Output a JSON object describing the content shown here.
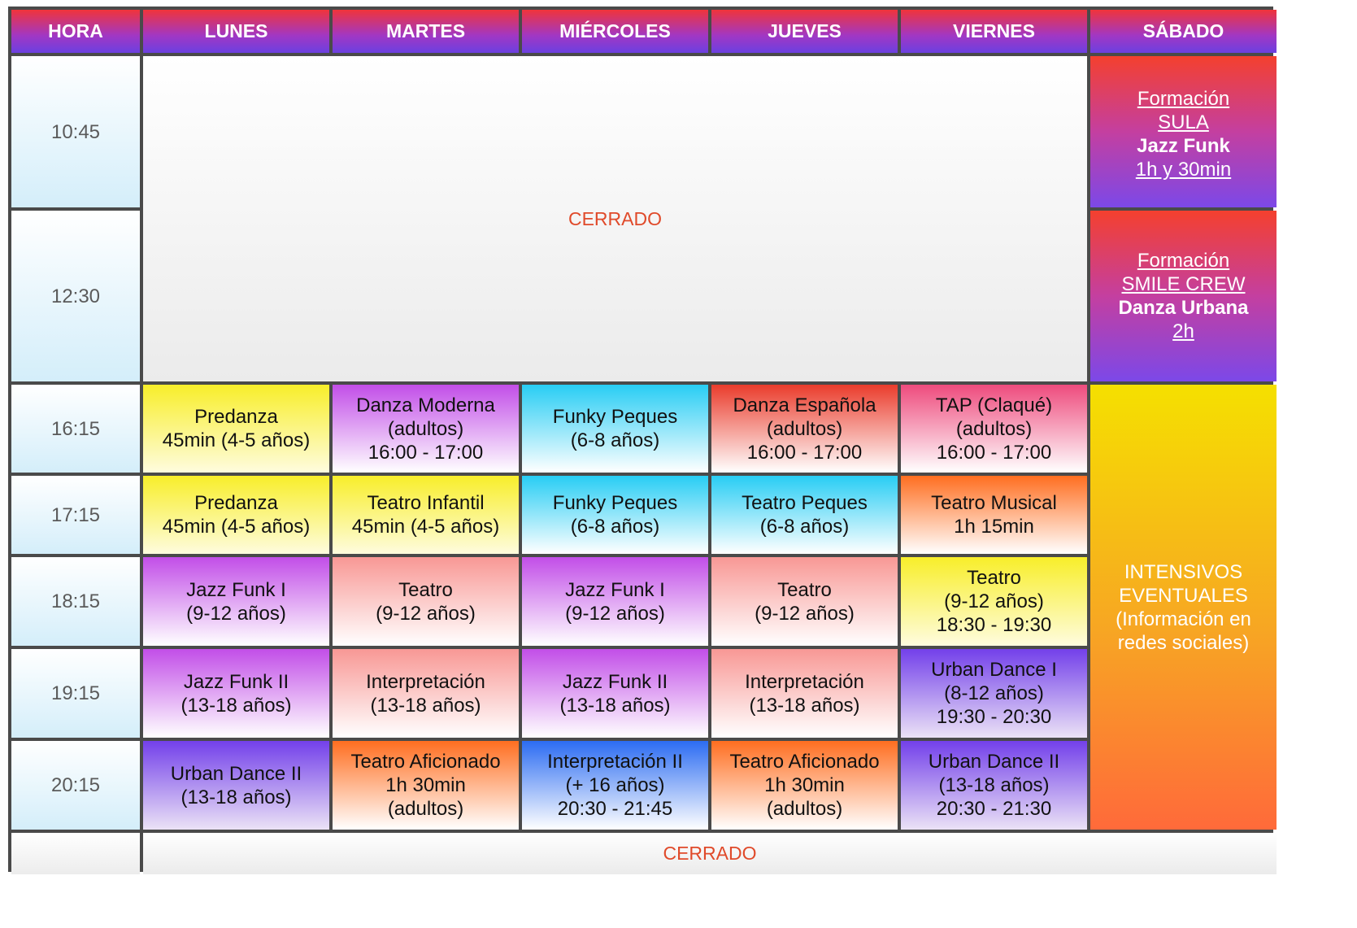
{
  "headers": [
    "HORA",
    "LUNES",
    "MARTES",
    "MIÉRCOLES",
    "JUEVES",
    "VIERNES",
    "SÁBADO"
  ],
  "times": [
    "10:45",
    "12:30",
    "16:15",
    "17:15",
    "18:15",
    "19:15",
    "20:15"
  ],
  "closed_label": "CERRADO",
  "saturday": {
    "morning1": {
      "line1": "Formación",
      "line2": "SULA",
      "line3": "Jazz Funk",
      "line4": "1h y 30min"
    },
    "morning2": {
      "line1": "Formación",
      "line2": "SMILE CREW",
      "line3": "Danza Urbana",
      "line4": "2h"
    },
    "afternoon": {
      "line1": "INTENSIVOS",
      "line2": "EVENTUALES",
      "line3": "(Información en",
      "line4": "redes sociales)"
    }
  },
  "classes": {
    "r1615": {
      "lunes": [
        "Predanza",
        "45min (4-5 años)"
      ],
      "martes": [
        "Danza Moderna",
        "(adultos)",
        "16:00 - 17:00"
      ],
      "miercoles": [
        "Funky Peques",
        "(6-8 años)"
      ],
      "jueves": [
        "Danza Española",
        "(adultos)",
        "16:00 - 17:00"
      ],
      "viernes": [
        "TAP (Claqué)",
        "(adultos)",
        "16:00 - 17:00"
      ]
    },
    "r1715": {
      "lunes": [
        "Predanza",
        "45min (4-5 años)"
      ],
      "martes": [
        "Teatro Infantil",
        "45min (4-5 años)"
      ],
      "miercoles": [
        "Funky Peques",
        "(6-8 años)"
      ],
      "jueves": [
        "Teatro Peques",
        "(6-8 años)"
      ],
      "viernes": [
        "Teatro Musical",
        "1h 15min"
      ]
    },
    "r1815": {
      "lunes": [
        "Jazz Funk I",
        "(9-12 años)"
      ],
      "martes": [
        "Teatro",
        "(9-12 años)"
      ],
      "miercoles": [
        "Jazz Funk I",
        "(9-12 años)"
      ],
      "jueves": [
        "Teatro",
        "(9-12 años)"
      ],
      "viernes": [
        "Teatro",
        "(9-12 años)",
        "18:30 - 19:30"
      ]
    },
    "r1915": {
      "lunes": [
        "Jazz Funk II",
        "(13-18 años)"
      ],
      "martes": [
        "Interpretación",
        "(13-18 años)"
      ],
      "miercoles": [
        "Jazz Funk II",
        "(13-18 años)"
      ],
      "jueves": [
        "Interpretación",
        "(13-18 años)"
      ],
      "viernes": [
        "Urban Dance I",
        "(8-12 años)",
        "19:30 - 20:30"
      ]
    },
    "r2015": {
      "lunes": [
        "Urban Dance II",
        "(13-18 años)"
      ],
      "martes": [
        "Teatro Aficionado",
        "1h 30min",
        "(adultos)"
      ],
      "miercoles": [
        "Interpretación II",
        "(+ 16 años)",
        "20:30 - 21:45"
      ],
      "jueves": [
        "Teatro Aficionado",
        "1h 30min",
        "(adultos)"
      ],
      "viernes": [
        "Urban Dance II",
        "(13-18 años)",
        "20:30 - 21:30"
      ]
    }
  }
}
